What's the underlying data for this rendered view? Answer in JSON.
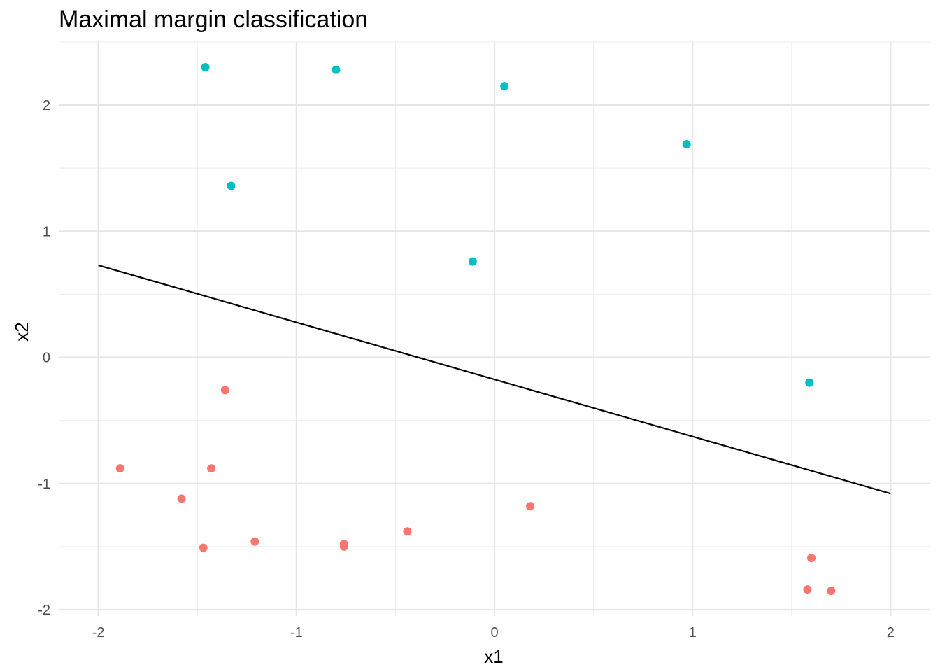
{
  "chart_data": {
    "type": "scatter",
    "title": "Maximal margin classification",
    "xlabel": "x1",
    "ylabel": "x2",
    "xlim": [
      -2.2,
      2.2
    ],
    "ylim": [
      -2.05,
      2.5
    ],
    "x_ticks": [
      -2,
      -1,
      0,
      1,
      2
    ],
    "y_ticks": [
      -2,
      -1,
      0,
      1,
      2
    ],
    "x_tick_labels": [
      "-2",
      "-1",
      "0",
      "1",
      "2"
    ],
    "y_tick_labels": [
      "-2",
      "-1",
      "0",
      "1",
      "2"
    ],
    "grid": true,
    "legend": "none",
    "series": [
      {
        "color": "#00BFC4",
        "points": [
          {
            "x": -1.46,
            "y": 2.3
          },
          {
            "x": -0.8,
            "y": 2.28
          },
          {
            "x": 0.05,
            "y": 2.15
          },
          {
            "x": 0.97,
            "y": 1.69
          },
          {
            "x": -1.33,
            "y": 1.36
          },
          {
            "x": -0.11,
            "y": 0.76
          },
          {
            "x": 1.59,
            "y": -0.2
          }
        ]
      },
      {
        "color": "#F8766D",
        "points": [
          {
            "x": -1.36,
            "y": -0.26
          },
          {
            "x": -1.89,
            "y": -0.88
          },
          {
            "x": -1.43,
            "y": -0.88
          },
          {
            "x": -1.58,
            "y": -1.12
          },
          {
            "x": -1.47,
            "y": -1.51
          },
          {
            "x": -1.21,
            "y": -1.46
          },
          {
            "x": -0.76,
            "y": -1.48
          },
          {
            "x": -0.76,
            "y": -1.5
          },
          {
            "x": -0.44,
            "y": -1.38
          },
          {
            "x": 0.18,
            "y": -1.18
          },
          {
            "x": 1.6,
            "y": -1.59
          },
          {
            "x": 1.58,
            "y": -1.84
          },
          {
            "x": 1.7,
            "y": -1.85
          }
        ]
      }
    ],
    "decision_boundary": {
      "color": "#000000",
      "points": [
        {
          "x": -2.0,
          "y": 0.73
        },
        {
          "x": 2.0,
          "y": -1.08
        }
      ]
    }
  }
}
